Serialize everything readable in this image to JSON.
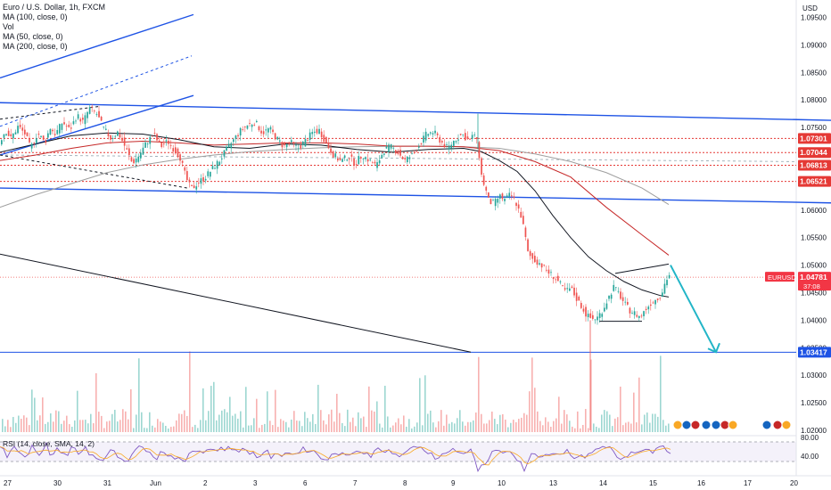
{
  "legend": {
    "title": "Euro / U.S. Dollar, 1h, FXCM",
    "lines": [
      "MA (100, close, 0)",
      "Vol",
      "MA (50, close, 0)",
      "MA (200, close, 0)"
    ]
  },
  "rsi_label": "RSI (14, close, SMA, 14, 2)",
  "currency": "USD",
  "symbol_tag": "EURUSD",
  "countdown": "37:08",
  "colors": {
    "up": "#26a69a",
    "down": "#ef5350",
    "trend_blue": "#1e53e5",
    "ma50": "#131722",
    "ma100": "#c62828",
    "ma200": "#9e9e9e",
    "level_red": "#e53935",
    "projection": "#22b5c7",
    "rsi": "#7e57c2"
  },
  "chart_data": {
    "type": "candlestick",
    "x_ticks": [
      "27",
      "30",
      "31",
      "Jun",
      "2",
      "3",
      "6",
      "7",
      "8",
      "9",
      "10",
      "13",
      "14",
      "15",
      "16",
      "17",
      "20"
    ],
    "y_ticks": [
      "1.09500",
      "1.09000",
      "1.08500",
      "1.08000",
      "1.07500",
      "1.07000",
      "1.06500",
      "1.06000",
      "1.05500",
      "1.05000",
      "1.04500",
      "1.04000",
      "1.03500",
      "1.03000",
      "1.02500",
      "1.02000"
    ],
    "ylim": [
      1.0195,
      1.0985
    ],
    "levels": [
      {
        "value": 1.07301,
        "label": "1.07301",
        "style": "dotted",
        "color": "#e53935"
      },
      {
        "value": 1.07044,
        "label": "1.07044",
        "style": "dotted",
        "color": "#e53935"
      },
      {
        "value": 1.06813,
        "label": "1.06813",
        "style": "dotted",
        "color": "#e53935"
      },
      {
        "value": 1.06521,
        "label": "1.06521",
        "style": "dotted",
        "color": "#e53935"
      },
      {
        "value": 1.03417,
        "label": "1.03417",
        "style": "solid",
        "color": "#1e53e5"
      }
    ],
    "last_price": {
      "value": 1.04781,
      "label": "1.04781"
    },
    "close_path": [
      [
        0,
        1.072
      ],
      [
        8,
        1.0745
      ],
      [
        14,
        1.073
      ],
      [
        22,
        1.0752
      ],
      [
        30,
        1.0738
      ],
      [
        36,
        1.0712
      ],
      [
        44,
        1.074
      ],
      [
        52,
        1.0722
      ],
      [
        58,
        1.075
      ],
      [
        64,
        1.0738
      ],
      [
        72,
        1.076
      ],
      [
        80,
        1.0745
      ],
      [
        88,
        1.0772
      ],
      [
        95,
        1.076
      ],
      [
        102,
        1.0785
      ],
      [
        110,
        1.0775
      ],
      [
        118,
        1.0748
      ],
      [
        126,
        1.073
      ],
      [
        134,
        1.0742
      ],
      [
        142,
        1.0715
      ],
      [
        150,
        1.0685
      ],
      [
        158,
        1.07
      ],
      [
        166,
        1.0722
      ],
      [
        174,
        1.0738
      ],
      [
        182,
        1.0715
      ],
      [
        190,
        1.0725
      ],
      [
        198,
        1.0708
      ],
      [
        204,
        1.0695
      ],
      [
        210,
        1.066
      ],
      [
        216,
        1.0638
      ],
      [
        224,
        1.065
      ],
      [
        232,
        1.066
      ],
      [
        240,
        1.0675
      ],
      [
        248,
        1.069
      ],
      [
        256,
        1.071
      ],
      [
        264,
        1.0728
      ],
      [
        272,
        1.0745
      ],
      [
        280,
        1.0755
      ],
      [
        288,
        1.076
      ],
      [
        296,
        1.074
      ],
      [
        304,
        1.0748
      ],
      [
        312,
        1.073
      ],
      [
        320,
        1.0715
      ],
      [
        328,
        1.0722
      ],
      [
        336,
        1.0712
      ],
      [
        344,
        1.0725
      ],
      [
        352,
        1.074
      ],
      [
        360,
        1.0745
      ],
      [
        368,
        1.072
      ],
      [
        376,
        1.07
      ],
      [
        384,
        1.0688
      ],
      [
        392,
        1.0698
      ],
      [
        400,
        1.0685
      ],
      [
        408,
        1.07
      ],
      [
        416,
        1.069
      ],
      [
        424,
        1.068
      ],
      [
        432,
        1.0708
      ],
      [
        440,
        1.0715
      ],
      [
        448,
        1.0705
      ],
      [
        456,
        1.069
      ],
      [
        464,
        1.07
      ],
      [
        472,
        1.0718
      ],
      [
        480,
        1.0738
      ],
      [
        488,
        1.0742
      ],
      [
        496,
        1.0725
      ],
      [
        504,
        1.0712
      ],
      [
        512,
        1.0728
      ],
      [
        520,
        1.0738
      ],
      [
        528,
        1.0725
      ],
      [
        534,
        1.0738
      ],
      [
        538,
        1.0715
      ],
      [
        542,
        1.066
      ],
      [
        546,
        1.064
      ],
      [
        550,
        1.0615
      ],
      [
        556,
        1.0612
      ],
      [
        562,
        1.0625
      ],
      [
        568,
        1.0618
      ],
      [
        574,
        1.0628
      ],
      [
        580,
        1.0615
      ],
      [
        586,
        1.059
      ],
      [
        590,
        1.056
      ],
      [
        594,
        1.052
      ],
      [
        600,
        1.051
      ],
      [
        606,
        1.0505
      ],
      [
        612,
        1.0495
      ],
      [
        618,
        1.0485
      ],
      [
        624,
        1.0478
      ],
      [
        630,
        1.0465
      ],
      [
        636,
        1.0452
      ],
      [
        642,
        1.0458
      ],
      [
        648,
        1.044
      ],
      [
        654,
        1.0425
      ],
      [
        660,
        1.0408
      ],
      [
        666,
        1.0402
      ],
      [
        672,
        1.0405
      ],
      [
        678,
        1.042
      ],
      [
        684,
        1.044
      ],
      [
        690,
        1.046
      ],
      [
        696,
        1.0448
      ],
      [
        702,
        1.043
      ],
      [
        708,
        1.0418
      ],
      [
        714,
        1.0412
      ],
      [
        720,
        1.0405
      ],
      [
        726,
        1.042
      ],
      [
        732,
        1.0432
      ],
      [
        738,
        1.0438
      ],
      [
        744,
        1.045
      ],
      [
        748,
        1.047
      ],
      [
        752,
        1.0482
      ]
    ],
    "ma50": [
      [
        0,
        1.0705
      ],
      [
        40,
        1.072
      ],
      [
        80,
        1.0735
      ],
      [
        120,
        1.074
      ],
      [
        160,
        1.0738
      ],
      [
        200,
        1.0728
      ],
      [
        240,
        1.0715
      ],
      [
        280,
        1.0712
      ],
      [
        320,
        1.072
      ],
      [
        360,
        1.0718
      ],
      [
        400,
        1.071
      ],
      [
        440,
        1.0705
      ],
      [
        480,
        1.071
      ],
      [
        520,
        1.0712
      ],
      [
        540,
        1.0706
      ],
      [
        560,
        1.069
      ],
      [
        580,
        1.067
      ],
      [
        600,
        1.0635
      ],
      [
        620,
        1.059
      ],
      [
        640,
        1.055
      ],
      [
        660,
        1.0515
      ],
      [
        680,
        1.049
      ],
      [
        700,
        1.047
      ],
      [
        720,
        1.0455
      ],
      [
        740,
        1.0445
      ],
      [
        750,
        1.0442
      ]
    ],
    "ma100": [
      [
        0,
        1.069
      ],
      [
        40,
        1.07
      ],
      [
        80,
        1.0712
      ],
      [
        120,
        1.0722
      ],
      [
        160,
        1.0725
      ],
      [
        200,
        1.0722
      ],
      [
        240,
        1.0718
      ],
      [
        280,
        1.072
      ],
      [
        320,
        1.0722
      ],
      [
        360,
        1.0722
      ],
      [
        400,
        1.072
      ],
      [
        440,
        1.0716
      ],
      [
        480,
        1.0716
      ],
      [
        520,
        1.0715
      ],
      [
        560,
        1.0708
      ],
      [
        600,
        1.0688
      ],
      [
        640,
        1.066
      ],
      [
        680,
        1.0605
      ],
      [
        720,
        1.0555
      ],
      [
        750,
        1.0518
      ]
    ],
    "ma200": [
      [
        0,
        1.0605
      ],
      [
        40,
        1.0628
      ],
      [
        80,
        1.0648
      ],
      [
        120,
        1.0668
      ],
      [
        160,
        1.0682
      ],
      [
        200,
        1.0692
      ],
      [
        240,
        1.07
      ],
      [
        280,
        1.0706
      ],
      [
        320,
        1.071
      ],
      [
        360,
        1.0713
      ],
      [
        400,
        1.0715
      ],
      [
        440,
        1.0716
      ],
      [
        480,
        1.0716
      ],
      [
        520,
        1.0715
      ],
      [
        560,
        1.0712
      ],
      [
        600,
        1.0702
      ],
      [
        640,
        1.0688
      ],
      [
        680,
        1.0668
      ],
      [
        720,
        1.064
      ],
      [
        750,
        1.061
      ]
    ],
    "trendlines": [
      {
        "color": "#1e53e5",
        "width": 1.4,
        "dash": "",
        "points": [
          [
            0,
            1.0795
          ],
          [
            932,
            1.0763
          ]
        ]
      },
      {
        "color": "#1e53e5",
        "width": 1.4,
        "dash": "",
        "points": [
          [
            0,
            1.064
          ],
          [
            932,
            1.0613
          ]
        ]
      },
      {
        "color": "#1e53e5",
        "width": 1.4,
        "dash": "",
        "points": [
          [
            0,
            1.084
          ],
          [
            217,
            1.0955
          ]
        ]
      },
      {
        "color": "#1e53e5",
        "width": 1.4,
        "dash": "",
        "points": [
          [
            0,
            1.07
          ],
          [
            217,
            1.0808
          ]
        ]
      },
      {
        "color": "#1e53e5",
        "width": 1.0,
        "dash": "3,3",
        "points": [
          [
            0,
            1.0752
          ],
          [
            215,
            1.088
          ]
        ]
      },
      {
        "color": "#131722",
        "width": 1.0,
        "dash": "",
        "points": [
          [
            0,
            1.052
          ],
          [
            528,
            1.0342
          ]
        ]
      },
      {
        "color": "#131722",
        "width": 1.0,
        "dash": "3,3",
        "points": [
          [
            0,
            1.0765
          ],
          [
            110,
            1.0788
          ]
        ]
      },
      {
        "color": "#131722",
        "width": 1.0,
        "dash": "3,3",
        "points": [
          [
            0,
            1.07
          ],
          [
            210,
            1.064
          ]
        ]
      },
      {
        "color": "#131722",
        "width": 1.0,
        "dash": "",
        "points": [
          [
            690,
            1.0485
          ],
          [
            750,
            1.0502
          ]
        ]
      },
      {
        "color": "#131722",
        "width": 1.0,
        "dash": "",
        "points": [
          [
            672,
            1.0398
          ],
          [
            720,
            1.0398
          ]
        ]
      }
    ],
    "projection": {
      "color": "#22b5c7",
      "points": [
        [
          752,
          1.05
        ],
        [
          803,
          1.0342
        ]
      ]
    },
    "volume_spikes": [
      155,
      211,
      536,
      662,
      596,
      740
    ]
  }
}
